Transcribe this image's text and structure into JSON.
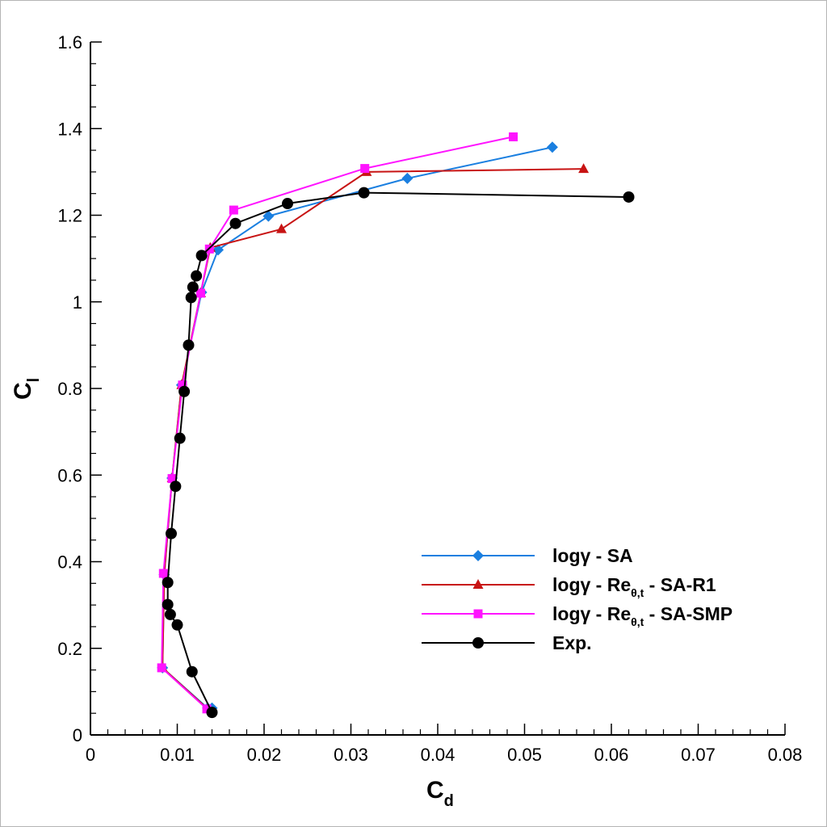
{
  "chart_data": {
    "type": "line",
    "title": "",
    "xlabel": {
      "main": "C",
      "sub": "d"
    },
    "ylabel": {
      "main": "C",
      "sub": "l"
    },
    "xlim": [
      0,
      0.08
    ],
    "ylim": [
      0,
      1.6
    ],
    "x_ticks": [
      0,
      0.01,
      0.02,
      0.03,
      0.04,
      0.05,
      0.06,
      0.07,
      0.08
    ],
    "x_tick_labels": [
      "0",
      "0.01",
      "0.02",
      "0.03",
      "0.04",
      "0.05",
      "0.06",
      "0.07",
      "0.08"
    ],
    "y_ticks": [
      0,
      0.2,
      0.4,
      0.6,
      0.8,
      1.0,
      1.2,
      1.4,
      1.6
    ],
    "y_tick_labels": [
      "0",
      "0.2",
      "0.4",
      "0.6",
      "0.8",
      "1",
      "1.2",
      "1.4",
      "1.6"
    ],
    "grid": false,
    "legend_position": "bottom-right",
    "series": [
      {
        "name": "logγ - SA",
        "label_main": "logγ - SA",
        "label_sub": "",
        "label_suffix": "",
        "color": "#1a7fe0",
        "marker": "diamond",
        "points": [
          [
            0.014,
            0.062
          ],
          [
            0.0135,
            0.062
          ],
          [
            0.0083,
            0.155
          ],
          [
            0.0085,
            0.37
          ],
          [
            0.0094,
            0.593
          ],
          [
            0.0105,
            0.808
          ],
          [
            0.0128,
            1.022
          ],
          [
            0.0147,
            1.12
          ],
          [
            0.0205,
            1.198
          ],
          [
            0.0365,
            1.285
          ],
          [
            0.0532,
            1.357
          ]
        ]
      },
      {
        "name": "logγ - Reθ,t - SA-R1",
        "label_main": "logγ - Re",
        "label_sub": "θ,t",
        "label_suffix": " - SA-R1",
        "color": "#c81414",
        "marker": "triangle",
        "points": [
          [
            0.0135,
            0.06
          ],
          [
            0.0083,
            0.155
          ],
          [
            0.0085,
            0.372
          ],
          [
            0.0094,
            0.593
          ],
          [
            0.0105,
            0.808
          ],
          [
            0.0127,
            1.02
          ],
          [
            0.0138,
            1.125
          ],
          [
            0.022,
            1.168
          ],
          [
            0.0318,
            1.3
          ],
          [
            0.0568,
            1.307
          ]
        ]
      },
      {
        "name": "logγ - Reθ,t - SA-SMP",
        "label_main": "logγ - Re",
        "label_sub": "θ,t",
        "label_suffix": " - SA-SMP",
        "color": "#ff14ff",
        "marker": "square",
        "points": [
          [
            0.0134,
            0.06
          ],
          [
            0.0082,
            0.155
          ],
          [
            0.0084,
            0.373
          ],
          [
            0.0094,
            0.592
          ],
          [
            0.0106,
            0.808
          ],
          [
            0.0127,
            1.02
          ],
          [
            0.0137,
            1.122
          ],
          [
            0.0165,
            1.212
          ],
          [
            0.0316,
            1.308
          ],
          [
            0.0487,
            1.381
          ]
        ]
      },
      {
        "name": "Exp.",
        "label_main": "Exp.",
        "label_sub": "",
        "label_suffix": "",
        "color": "#000000",
        "marker": "circle",
        "points": [
          [
            0.014,
            0.052
          ],
          [
            0.0117,
            0.146
          ],
          [
            0.01,
            0.254
          ],
          [
            0.0092,
            0.278
          ],
          [
            0.0089,
            0.301
          ],
          [
            0.0089,
            0.352
          ],
          [
            0.0093,
            0.465
          ],
          [
            0.0098,
            0.574
          ],
          [
            0.0103,
            0.685
          ],
          [
            0.0108,
            0.793
          ],
          [
            0.0113,
            0.9
          ],
          [
            0.0116,
            1.01
          ],
          [
            0.0118,
            1.034
          ],
          [
            0.0122,
            1.06
          ],
          [
            0.0128,
            1.107
          ],
          [
            0.0167,
            1.181
          ],
          [
            0.0227,
            1.227
          ],
          [
            0.0315,
            1.252
          ],
          [
            0.062,
            1.242
          ]
        ]
      }
    ]
  }
}
